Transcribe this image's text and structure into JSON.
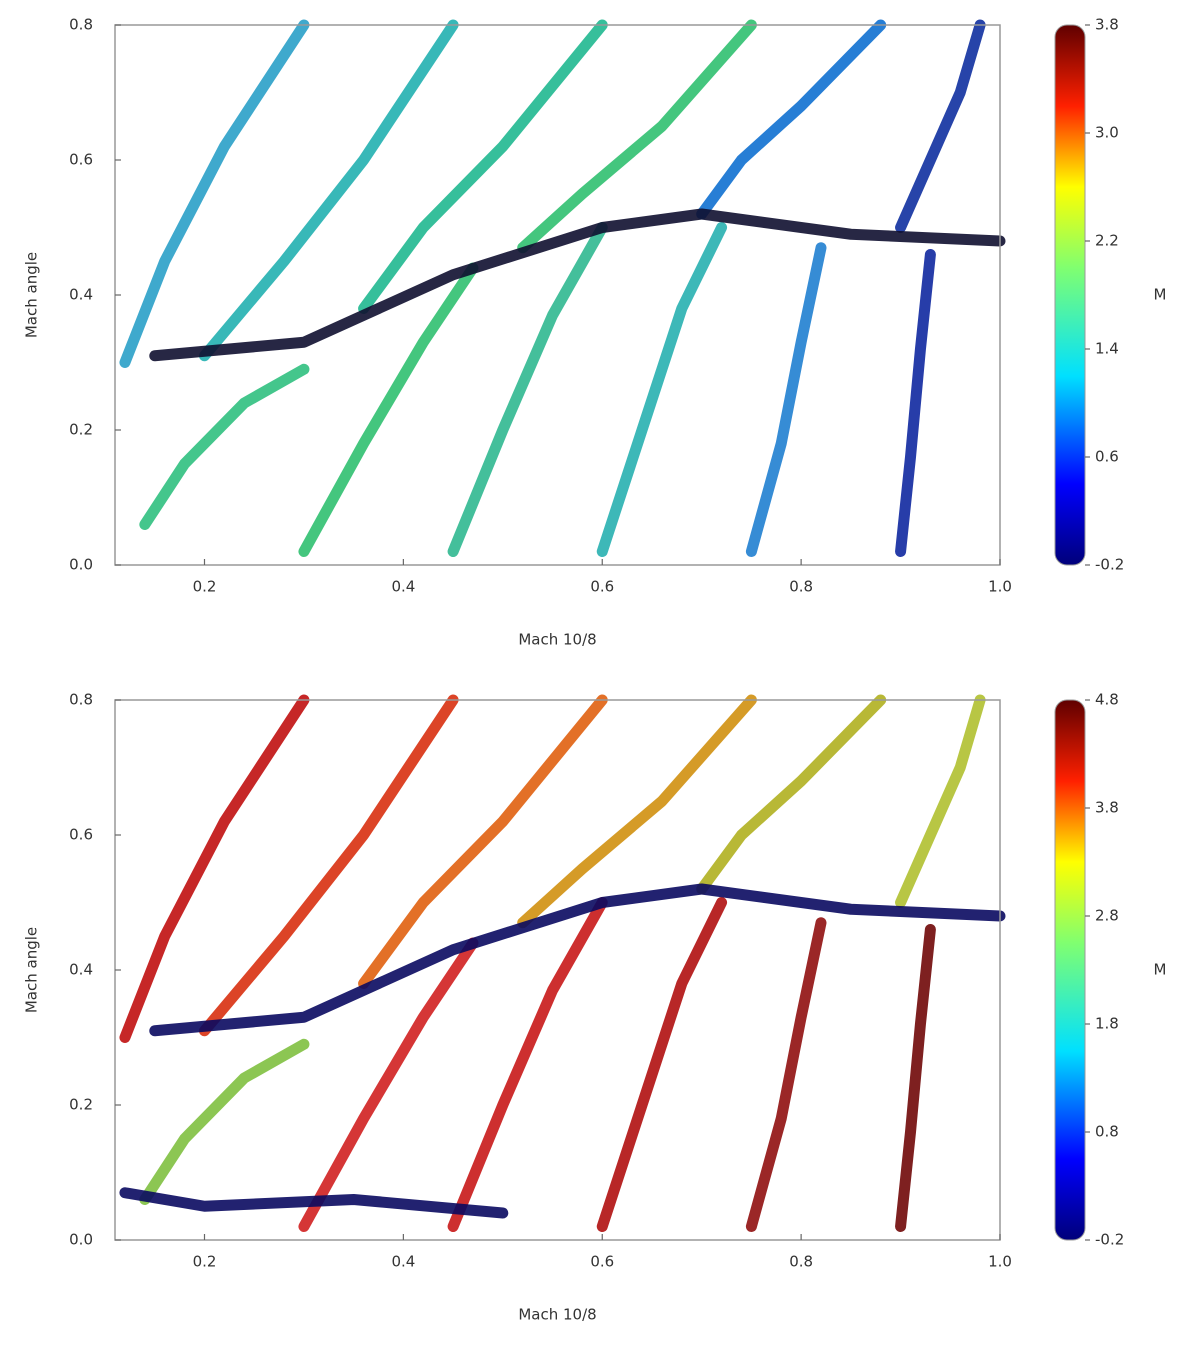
{
  "chart_data": [
    {
      "type": "line",
      "x_label": "Mach 10/8",
      "y_label": "Mach angle",
      "xlim": [
        0.11,
        1.0
      ],
      "xticks": [
        0.2,
        0.4,
        0.6,
        0.8,
        {
          "value": 1.0,
          "label": "1.0"
        }
      ],
      "ylim": [
        0,
        0.8
      ],
      "yticks": [
        {
          "value": 0,
          "label": "0.0"
        },
        0.2,
        0.4,
        0.6,
        0.8
      ],
      "series": [
        {
          "color": "#2aa0c8",
          "x": [
            0.3,
            0.22,
            0.16,
            0.12
          ],
          "values": [
            0.8,
            0.62,
            0.45,
            0.3
          ]
        },
        {
          "color": "#22b0b0",
          "x": [
            0.45,
            0.36,
            0.28,
            0.2
          ],
          "values": [
            0.8,
            0.6,
            0.45,
            0.31
          ]
        },
        {
          "color": "#20b890",
          "x": [
            0.6,
            0.5,
            0.42,
            0.36
          ],
          "values": [
            0.8,
            0.62,
            0.5,
            0.38
          ]
        },
        {
          "color": "#30c070",
          "x": [
            0.75,
            0.66,
            0.58,
            0.52
          ],
          "values": [
            0.8,
            0.65,
            0.55,
            0.47
          ]
        },
        {
          "color": "#1070d0",
          "x": [
            0.88,
            0.8,
            0.74,
            0.7
          ],
          "values": [
            0.8,
            0.68,
            0.6,
            0.52
          ]
        },
        {
          "color": "#1030a0",
          "x": [
            0.98,
            0.96,
            0.93,
            0.9
          ],
          "values": [
            0.8,
            0.7,
            0.6,
            0.5
          ]
        },
        {
          "color": "#30c080",
          "x": [
            0.14,
            0.18,
            0.24,
            0.3
          ],
          "values": [
            0.06,
            0.15,
            0.24,
            0.29
          ]
        },
        {
          "color": "#30c070",
          "x": [
            0.3,
            0.36,
            0.42,
            0.47
          ],
          "values": [
            0.02,
            0.18,
            0.33,
            0.44
          ]
        },
        {
          "color": "#30b890",
          "x": [
            0.45,
            0.5,
            0.55,
            0.6
          ],
          "values": [
            0.02,
            0.2,
            0.37,
            0.5
          ]
        },
        {
          "color": "#28b0b0",
          "x": [
            0.6,
            0.64,
            0.68,
            0.72
          ],
          "values": [
            0.02,
            0.2,
            0.38,
            0.5
          ]
        },
        {
          "color": "#2080d0",
          "x": [
            0.75,
            0.78,
            0.8,
            0.82
          ],
          "values": [
            0.02,
            0.18,
            0.33,
            0.47
          ]
        },
        {
          "color": "#1028a0",
          "x": [
            0.9,
            0.91,
            0.92,
            0.93
          ],
          "values": [
            0.02,
            0.16,
            0.32,
            0.46
          ]
        },
        {
          "color": "#101030",
          "x": [
            0.15,
            0.3,
            0.45,
            0.6,
            0.7,
            0.85,
            1.0
          ],
          "values": [
            0.31,
            0.33,
            0.43,
            0.5,
            0.52,
            0.49,
            0.48
          ]
        }
      ],
      "colorbar": {
        "label": "M",
        "lim": [
          -0.2,
          3.8
        ],
        "ticks": [
          -0.2,
          0.6,
          1.4,
          2.2,
          {
            "value": 3,
            "label": "3.0"
          },
          3.8
        ]
      }
    },
    {
      "type": "line",
      "x_label": "Mach 10/8",
      "y_label": "Mach angle",
      "xlim": [
        0.11,
        1.0
      ],
      "xticks": [
        0.2,
        0.4,
        0.6,
        0.8,
        {
          "value": 1.0,
          "label": "1.0"
        }
      ],
      "ylim": [
        0,
        0.8
      ],
      "yticks": [
        {
          "value": 0,
          "label": "0.0"
        },
        0.2,
        0.4,
        0.6,
        0.8
      ],
      "series": [
        {
          "color": "#c01010",
          "x": [
            0.3,
            0.22,
            0.16,
            0.12
          ],
          "values": [
            0.8,
            0.62,
            0.45,
            0.3
          ]
        },
        {
          "color": "#d83010",
          "x": [
            0.45,
            0.36,
            0.28,
            0.2
          ],
          "values": [
            0.8,
            0.6,
            0.45,
            0.31
          ]
        },
        {
          "color": "#e06010",
          "x": [
            0.6,
            0.5,
            0.42,
            0.36
          ],
          "values": [
            0.8,
            0.62,
            0.5,
            0.38
          ]
        },
        {
          "color": "#d09010",
          "x": [
            0.75,
            0.66,
            0.58,
            0.52
          ],
          "values": [
            0.8,
            0.65,
            0.55,
            0.47
          ]
        },
        {
          "color": "#b0b020",
          "x": [
            0.88,
            0.8,
            0.74,
            0.7
          ],
          "values": [
            0.8,
            0.68,
            0.6,
            0.52
          ]
        },
        {
          "color": "#b0c030",
          "x": [
            0.98,
            0.96,
            0.93,
            0.9
          ],
          "values": [
            0.8,
            0.7,
            0.6,
            0.5
          ]
        },
        {
          "color": "#80c040",
          "x": [
            0.14,
            0.18,
            0.24,
            0.3
          ],
          "values": [
            0.06,
            0.15,
            0.24,
            0.29
          ]
        },
        {
          "color": "#d02020",
          "x": [
            0.3,
            0.36,
            0.42,
            0.47
          ],
          "values": [
            0.02,
            0.18,
            0.33,
            0.44
          ]
        },
        {
          "color": "#c81818",
          "x": [
            0.45,
            0.5,
            0.55,
            0.6
          ],
          "values": [
            0.02,
            0.2,
            0.37,
            0.5
          ]
        },
        {
          "color": "#b01010",
          "x": [
            0.6,
            0.64,
            0.68,
            0.72
          ],
          "values": [
            0.02,
            0.2,
            0.38,
            0.5
          ]
        },
        {
          "color": "#901010",
          "x": [
            0.75,
            0.78,
            0.8,
            0.82
          ],
          "values": [
            0.02,
            0.18,
            0.33,
            0.47
          ]
        },
        {
          "color": "#700808",
          "x": [
            0.9,
            0.91,
            0.92,
            0.93
          ],
          "values": [
            0.02,
            0.16,
            0.32,
            0.46
          ]
        },
        {
          "color": "#0a0a60",
          "x": [
            0.15,
            0.3,
            0.45,
            0.6,
            0.7,
            0.85,
            1.0
          ],
          "values": [
            0.31,
            0.33,
            0.43,
            0.5,
            0.52,
            0.49,
            0.48
          ]
        },
        {
          "color": "#0a0a60",
          "x": [
            0.12,
            0.2,
            0.35,
            0.5
          ],
          "values": [
            0.07,
            0.05,
            0.06,
            0.04
          ]
        }
      ],
      "colorbar": {
        "label": "M",
        "lim": [
          -0.2,
          4.8
        ],
        "ticks": [
          -0.2,
          0.8,
          1.8,
          2.8,
          3.8,
          4.8
        ]
      }
    }
  ]
}
